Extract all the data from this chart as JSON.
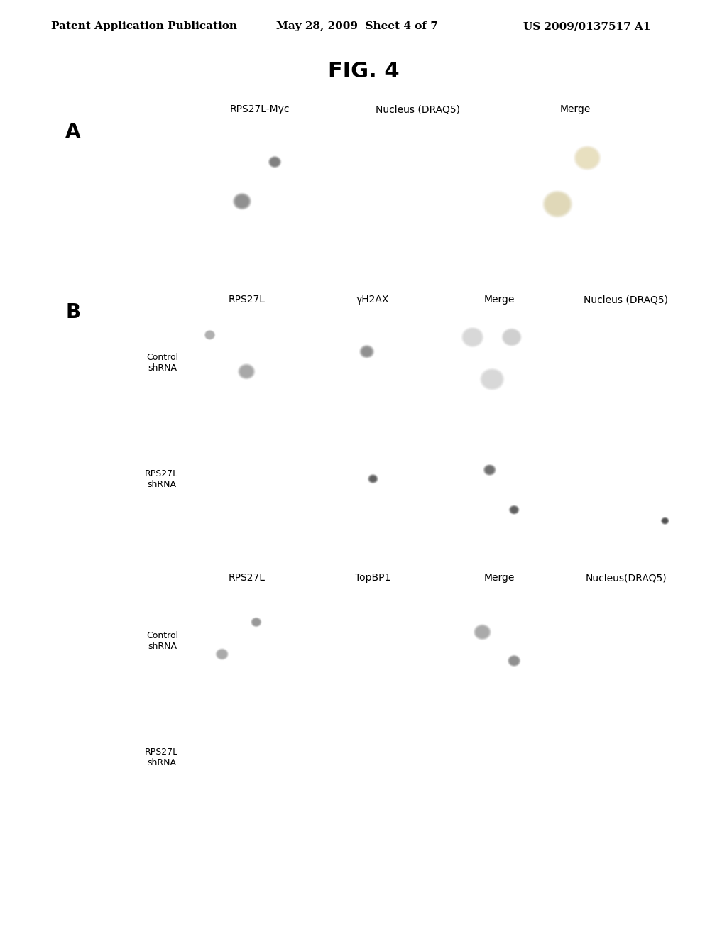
{
  "background_color": "#ffffff",
  "header_left": "Patent Application Publication",
  "header_center": "May 28, 2009  Sheet 4 of 7",
  "header_right": "US 2009/0137517 A1",
  "figure_title": "FIG. 4",
  "panel_A_label": "A",
  "panel_B_label": "B",
  "panel_A_col_labels": [
    "RPS27L-Myc",
    "Nucleus (DRAQ5)",
    "Merge"
  ],
  "panel_B1_col_labels": [
    "RPS27L",
    "γH2AX",
    "Merge",
    "Nucleus (DRAQ5)"
  ],
  "panel_B1_row_labels": [
    "Control\nshRNA",
    "RPS27L\nshRNA"
  ],
  "panel_B2_col_labels": [
    "RPS27L",
    "TopBP1",
    "Merge",
    "Nucleus(DRAQ5)"
  ],
  "panel_B2_row_labels": [
    "Control\nshRNA",
    "RPS27L\nshRNA"
  ],
  "header_fontsize": 11,
  "title_fontsize": 22,
  "label_fontsize": 20,
  "col_label_fontsize": 10,
  "row_label_fontsize": 9
}
